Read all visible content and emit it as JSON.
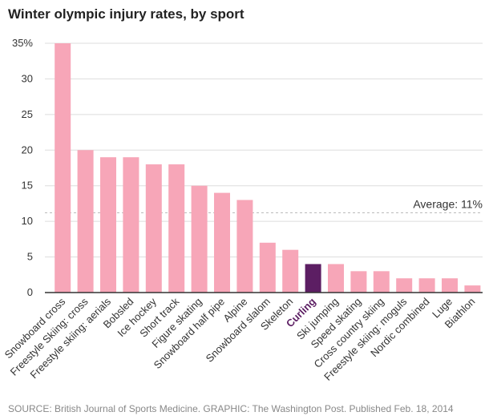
{
  "title": "Winter olympic injury rates, by sport",
  "source": "SOURCE: British Journal of Sports Medicine. GRAPHIC: The Washington Post. Published Feb. 18, 2014",
  "chart_data": {
    "type": "bar",
    "title": "Winter olympic injury rates, by sport",
    "xlabel": "",
    "ylabel": "",
    "ylim": [
      0,
      35
    ],
    "yticks": [
      0,
      5,
      10,
      15,
      20,
      25,
      30,
      35
    ],
    "ytick_labels": [
      "0",
      "5",
      "10",
      "15",
      "20",
      "25",
      "30",
      "35%"
    ],
    "grid": true,
    "categories": [
      "Snowboard cross",
      "Freestyle Skiing: cross",
      "Freestyle skiing: aerials",
      "Bobsled",
      "Ice hockey",
      "Short track",
      "Figure skating",
      "Snowboard half pipe",
      "Alpine",
      "Snowboard slalom",
      "Skeleton",
      "Curling",
      "Ski jumping",
      "Speed skating",
      "Cross country skiing",
      "Freestyle skiing: moguls",
      "Nordic combined",
      "Luge",
      "Biathlon"
    ],
    "values": [
      35,
      20,
      19,
      19,
      18,
      18,
      15,
      14,
      13,
      7,
      6,
      4,
      4,
      3,
      3,
      2,
      2,
      2,
      1
    ],
    "highlight": "Curling",
    "colors": {
      "bar": "#f7a6b8",
      "highlight": "#5c1e63",
      "grid": "#dddddd",
      "axis": "#333333",
      "average_line": "#bbbbbb",
      "label": "#333333"
    },
    "reference_line": {
      "value": 11.2,
      "label": "Average: 11%"
    }
  }
}
